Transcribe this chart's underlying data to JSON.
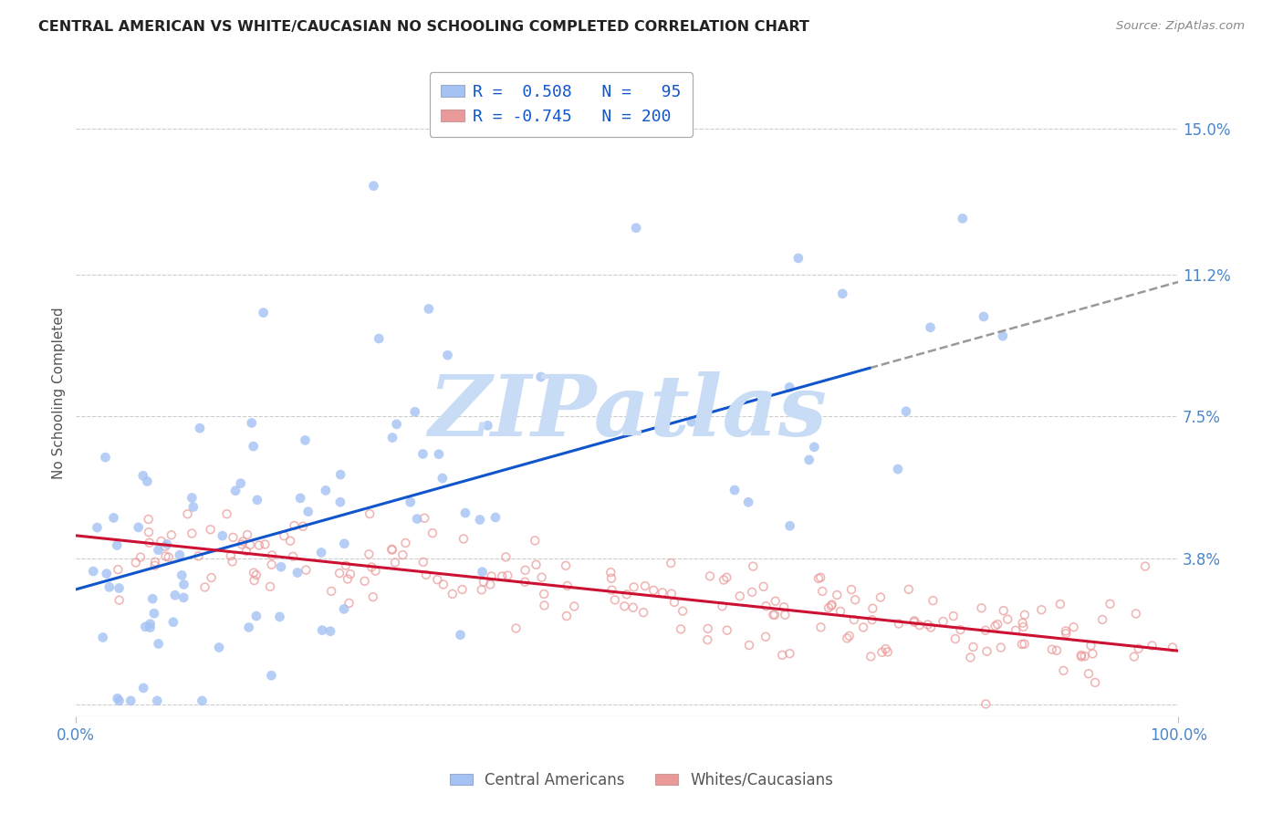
{
  "title": "CENTRAL AMERICAN VS WHITE/CAUCASIAN NO SCHOOLING COMPLETED CORRELATION CHART",
  "source": "Source: ZipAtlas.com",
  "ylabel": "No Schooling Completed",
  "yticks_right": [
    0.0,
    0.038,
    0.075,
    0.112,
    0.15
  ],
  "ytick_labels_right": [
    "",
    "3.8%",
    "7.5%",
    "11.2%",
    "15.0%"
  ],
  "xlim": [
    0.0,
    1.0
  ],
  "ylim": [
    -0.003,
    0.165
  ],
  "blue_N": 95,
  "pink_N": 200,
  "blue_color": "#a4c2f4",
  "pink_color": "#ea9999",
  "blue_line_color": "#1155cc",
  "pink_line_color": "#cc1133",
  "blue_scatter_alpha": 0.8,
  "pink_scatter_alpha": 0.7,
  "blue_marker_size": 60,
  "pink_marker_size": 40,
  "background_color": "#ffffff",
  "grid_color": "#cccccc",
  "title_color": "#222222",
  "axis_label_color": "#4a86c8",
  "watermark_text": "ZIPatlas",
  "watermark_color": "#c8ddf5",
  "legend_border_color": "#aaaaaa",
  "dashed_line_color": "#999999",
  "blue_intercept": 0.03,
  "blue_slope": 0.08,
  "pink_intercept": 0.044,
  "pink_slope": -0.03
}
